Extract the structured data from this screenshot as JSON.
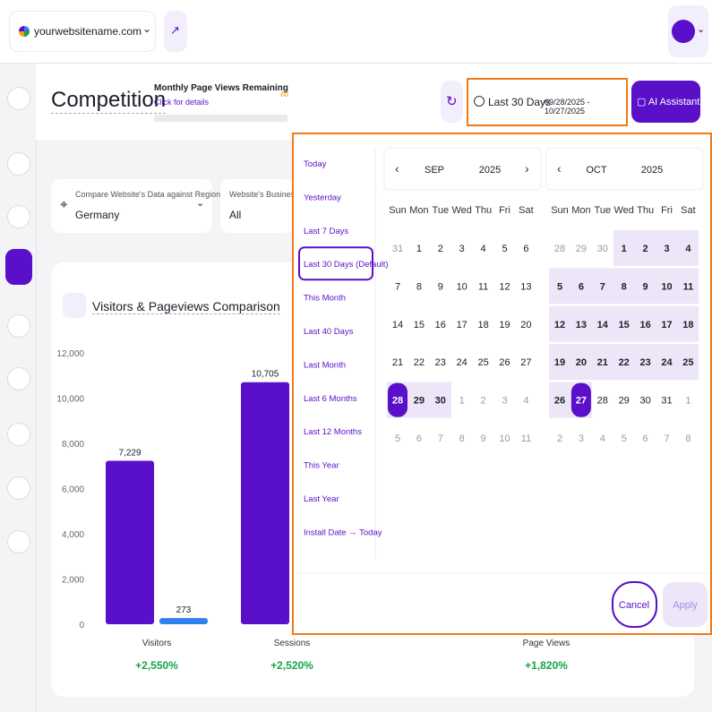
{
  "header": {
    "site": "yourwebsitename.com"
  },
  "page": {
    "title": "Competition",
    "quota_label": "Monthly Page Views Remaining",
    "quota_link": "Click for details",
    "quota_value": "∞"
  },
  "date_button": {
    "label": "Last 30 Days",
    "range": "09/28/2025 - 10/27/2025"
  },
  "ai_button": "AI Assistant",
  "filters": [
    {
      "label": "Compare Website's Data against Region",
      "value": "Germany"
    },
    {
      "label": "Website's Business Se",
      "value": "All"
    }
  ],
  "chart": {
    "type": "bar",
    "title": "Visitors & Pageviews Comparison",
    "categories": [
      "Visitors",
      "Sessions",
      "Page Views"
    ],
    "series": [
      {
        "color": "#5a0fc8",
        "values": [
          7229,
          10705,
          null
        ],
        "value_labels": [
          "7,229",
          "10,705",
          null
        ]
      },
      {
        "color": "#2f80ed",
        "values": [
          273,
          null,
          null
        ],
        "value_labels": [
          "273",
          null,
          null
        ]
      }
    ],
    "changes": [
      "+2,550%",
      "+2,520%",
      "+1,820%"
    ],
    "ylim": [
      0,
      12000
    ],
    "yticks": [
      0,
      {
        "value": 2000,
        "label": "2,000"
      },
      {
        "value": 4000,
        "label": "4,000"
      },
      {
        "value": 6000,
        "label": "6,000"
      },
      {
        "value": 8000,
        "label": "8,000"
      },
      {
        "value": 10000,
        "label": "10,000"
      },
      {
        "value": 12000,
        "label": "12,000"
      }
    ],
    "grid": false
  },
  "date_picker": {
    "presets": [
      "Today",
      "Yesterday",
      "Last 7 Days",
      "Last 30 Days (Default)",
      "This Month",
      "Last 40 Days",
      "Last Month",
      "Last 6 Months",
      "Last 12 Months",
      "This Year",
      "Last Year",
      "Install Date → Today"
    ],
    "weekdays": [
      "Sun",
      "Mon",
      "Tue",
      "Wed",
      "Thu",
      "Fri",
      "Sat"
    ],
    "months": [
      {
        "month": "SEP",
        "year": "2025",
        "weeks": [
          [
            31,
            1,
            2,
            3,
            4,
            5,
            6
          ],
          [
            7,
            8,
            9,
            10,
            11,
            12,
            13
          ],
          [
            14,
            15,
            16,
            17,
            18,
            19,
            20
          ],
          [
            21,
            22,
            23,
            24,
            25,
            26,
            27
          ],
          [
            28,
            29,
            30,
            1,
            2,
            3,
            4
          ],
          [
            5,
            6,
            7,
            8,
            9,
            10,
            11
          ]
        ]
      },
      {
        "month": "OCT",
        "year": "2025",
        "weeks": [
          [
            28,
            29,
            30,
            1,
            2,
            3,
            4
          ],
          [
            5,
            6,
            7,
            8,
            9,
            10,
            11
          ],
          [
            12,
            13,
            14,
            15,
            16,
            17,
            18
          ],
          [
            19,
            20,
            21,
            22,
            23,
            24,
            25
          ],
          [
            26,
            27,
            28,
            29,
            30,
            31,
            1
          ],
          [
            2,
            3,
            4,
            5,
            6,
            7,
            8
          ]
        ]
      }
    ],
    "cancel": "Cancel",
    "apply": "Apply"
  }
}
